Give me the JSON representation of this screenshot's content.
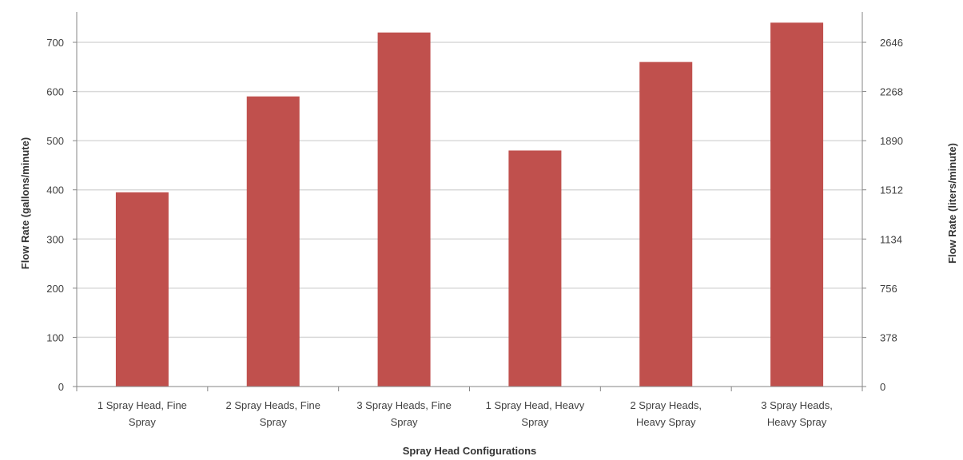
{
  "chart_data": {
    "type": "bar",
    "categories": [
      [
        "1 Spray Head, Fine",
        "Spray"
      ],
      [
        "2 Spray Heads, Fine",
        "Spray"
      ],
      [
        "3 Spray Heads, Fine",
        "Spray"
      ],
      [
        "1 Spray Head, Heavy",
        "Spray"
      ],
      [
        "2 Spray Heads,",
        "Heavy Spray"
      ],
      [
        "3 Spray Heads,",
        "Heavy Spray"
      ]
    ],
    "values": [
      395,
      590,
      720,
      480,
      660,
      740
    ],
    "xlabel": "Spray Head Configurations",
    "ylabel": "Flow Rate (gallons/minute)",
    "ylabel_right": "Flow Rate (liters/minute)",
    "ylim": [
      0,
      750
    ],
    "yticks": [
      0,
      100,
      200,
      300,
      400,
      500,
      600,
      700
    ],
    "yticks_right": [
      "0",
      "378",
      "756",
      "1134",
      "1512",
      "1890",
      "2268",
      "2646"
    ],
    "grid": true,
    "bar_color": "#c0504d",
    "grid_color": "#d9d9d9",
    "axis_color": "#868686"
  }
}
